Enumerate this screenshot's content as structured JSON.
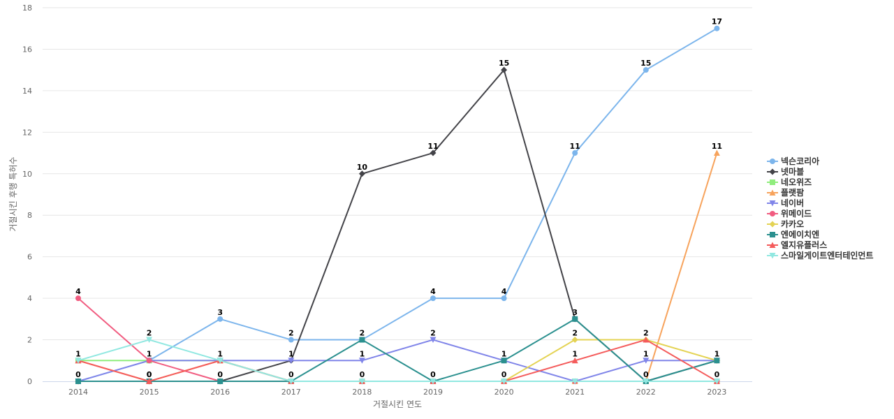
{
  "chart_data": {
    "type": "line",
    "xlabel": "거절시킨 연도",
    "ylabel": "거절시킨 후행 특허수",
    "ylim": [
      0,
      18
    ],
    "yticks": [
      0,
      2,
      4,
      6,
      8,
      10,
      12,
      14,
      16,
      18
    ],
    "x": [
      "2014",
      "2015",
      "2016",
      "2017",
      "2018",
      "2019",
      "2020",
      "2021",
      "2022",
      "2023"
    ],
    "grid": true,
    "legend_position": "right",
    "series": [
      {
        "name": "넥슨코리아",
        "color": "#7cb5ec",
        "marker": "circle",
        "values": [
          0,
          1,
          3,
          2,
          2,
          4,
          4,
          11,
          15,
          17
        ],
        "labels": [
          false,
          false,
          true,
          true,
          false,
          true,
          true,
          true,
          true,
          true
        ]
      },
      {
        "name": "넷마블",
        "color": "#434348",
        "marker": "diamond",
        "values": [
          0,
          0,
          0,
          1,
          10,
          11,
          15,
          3,
          0,
          1
        ],
        "labels": [
          false,
          false,
          false,
          false,
          true,
          true,
          true,
          false,
          false,
          false
        ]
      },
      {
        "name": "네오위즈",
        "color": "#90ed7d",
        "marker": "square",
        "values": [
          1,
          1,
          1,
          0,
          0,
          0,
          0,
          0,
          0,
          0
        ],
        "labels": [
          false,
          false,
          false,
          false,
          false,
          false,
          false,
          false,
          false,
          false
        ]
      },
      {
        "name": "플랫팜",
        "color": "#f7a35c",
        "marker": "triangle",
        "values": [
          1,
          0,
          1,
          0,
          0,
          0,
          0,
          0,
          0,
          11
        ],
        "labels": [
          false,
          false,
          false,
          false,
          false,
          false,
          false,
          false,
          false,
          true
        ]
      },
      {
        "name": "네이버",
        "color": "#8085e9",
        "marker": "triangle-down",
        "values": [
          0,
          1,
          1,
          1,
          1,
          2,
          1,
          0,
          1,
          1
        ],
        "labels": [
          false,
          false,
          false,
          true,
          true,
          true,
          false,
          false,
          true,
          false
        ]
      },
      {
        "name": "위메이드",
        "color": "#f15c80",
        "marker": "circle",
        "values": [
          4,
          1,
          0,
          0,
          0,
          0,
          0,
          0,
          0,
          0
        ],
        "labels": [
          true,
          true,
          false,
          false,
          false,
          false,
          false,
          false,
          false,
          false
        ]
      },
      {
        "name": "카카오",
        "color": "#e4d354",
        "marker": "diamond",
        "values": [
          0,
          0,
          0,
          0,
          0,
          0,
          0,
          2,
          2,
          1
        ],
        "labels": [
          false,
          false,
          false,
          false,
          false,
          false,
          false,
          true,
          true,
          false
        ]
      },
      {
        "name": "엔에이치엔",
        "color": "#2b908f",
        "marker": "square",
        "values": [
          0,
          0,
          0,
          0,
          2,
          0,
          1,
          3,
          0,
          1
        ],
        "labels": [
          true,
          true,
          true,
          true,
          true,
          true,
          true,
          true,
          true,
          true
        ]
      },
      {
        "name": "엘지유플러스",
        "color": "#f45b5b",
        "marker": "triangle",
        "values": [
          1,
          0,
          1,
          0,
          0,
          0,
          0,
          1,
          2,
          0
        ],
        "labels": [
          true,
          true,
          true,
          false,
          true,
          false,
          true,
          true,
          false,
          true
        ]
      },
      {
        "name": "스마일게이트엔터테인먼트",
        "color": "#91e8e1",
        "marker": "triangle-down",
        "values": [
          1,
          2,
          1,
          0,
          0,
          0,
          0,
          0,
          0,
          0
        ],
        "labels": [
          false,
          true,
          false,
          false,
          false,
          false,
          false,
          false,
          false,
          false
        ]
      }
    ]
  }
}
